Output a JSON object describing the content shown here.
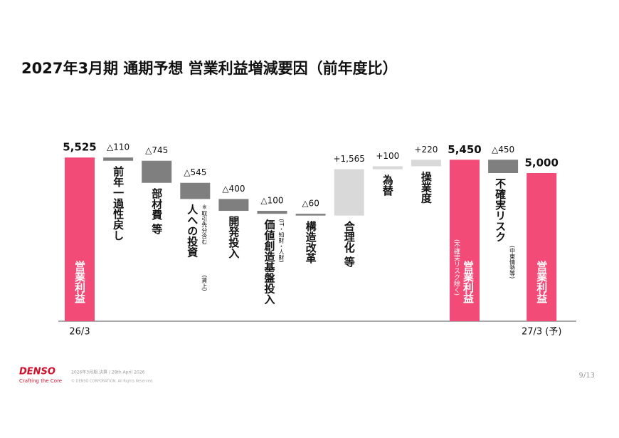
{
  "chart_data": {
    "type": "waterfall",
    "title": "2027年3月期 通期予想 営業利益増減要因（前年度比）",
    "categories": [
      "営業利益",
      "前年一過性戻し",
      "部材費 等",
      "人への投資",
      "開発投入",
      "価値創造基盤投入",
      "構造改革",
      "合理化 等",
      "為替",
      "操業度",
      "営業利益",
      "不確実リスク",
      "営業利益"
    ],
    "category_notes": [
      null,
      null,
      null,
      [
        "※取引先分含む",
        "(賃上)"
      ],
      null,
      [
        "(IT・知財・人財)"
      ],
      null,
      null,
      null,
      null,
      [
        "(不確実リスク除く)"
      ],
      [
        "(中東情勢等)"
      ],
      null
    ],
    "kinds": [
      "total",
      "delta",
      "delta",
      "delta",
      "delta",
      "delta",
      "delta",
      "delta",
      "delta",
      "delta",
      "total",
      "delta",
      "total"
    ],
    "values": [
      5525,
      -110,
      -745,
      -545,
      -400,
      -100,
      -60,
      1565,
      100,
      220,
      5450,
      -450,
      5000
    ],
    "value_labels": [
      "5,525",
      "△110",
      "△745",
      "△545",
      "△400",
      "△100",
      "△60",
      "+1,565",
      "+100",
      "+220",
      "5,450",
      "△450",
      "5,000"
    ],
    "period_labels": [
      "26/3",
      null,
      null,
      null,
      null,
      null,
      null,
      null,
      null,
      null,
      null,
      null,
      "27/3 (予)"
    ],
    "colors": {
      "total": "#f24b78",
      "decrease": "#7f7f7f",
      "increase": "#d9d9d9"
    }
  },
  "footer": {
    "logo": "DENSO",
    "tagline": "Crafting the Core",
    "event": "2026年3月期 決算 / 28th April 2026",
    "copyright": "© DENSO CORPORATION. All Rights Reserved.",
    "page": "9/13"
  }
}
